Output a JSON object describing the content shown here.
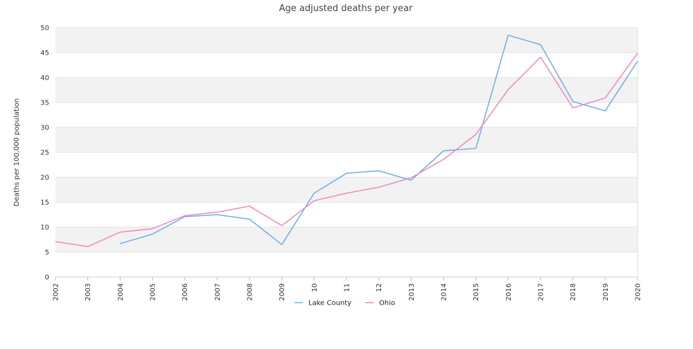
{
  "chart_data": {
    "type": "line",
    "title": "Age adjusted deaths per year",
    "xlabel": "",
    "ylabel": "Deaths per 100,000 population",
    "ylim": [
      0,
      50
    ],
    "y_ticks": [
      0,
      5,
      10,
      15,
      20,
      25,
      30,
      35,
      40,
      45,
      50
    ],
    "x_tick_labels": [
      "2002",
      "2003",
      "2004",
      "2005",
      "2006",
      "2007",
      "2008",
      "2009",
      "10",
      "11",
      "12",
      "2013",
      "2014",
      "2015",
      "2016",
      "2017",
      "2018",
      "2019",
      "2020"
    ],
    "x": [
      2002,
      2003,
      2004,
      2005,
      2006,
      2007,
      2008,
      2009,
      2010,
      2011,
      2012,
      2013,
      2014,
      2015,
      2016,
      2017,
      2018,
      2019,
      2020
    ],
    "grid": "alternating horizontal bands",
    "legend_position": "bottom",
    "series": [
      {
        "name": "Lake County",
        "color": "#6aaee8",
        "values": [
          null,
          null,
          6.7,
          8.6,
          12.1,
          12.5,
          11.6,
          6.5,
          16.8,
          20.8,
          21.3,
          19.4,
          25.3,
          25.8,
          48.5,
          46.6,
          35.2,
          33.3,
          43.3
        ]
      },
      {
        "name": "Ohio",
        "color": "#ee88bb",
        "values": [
          7.1,
          6.1,
          9.0,
          9.7,
          12.3,
          13.0,
          14.2,
          10.3,
          15.3,
          16.8,
          18.0,
          19.9,
          23.6,
          28.6,
          37.6,
          44.1,
          33.9,
          35.9,
          44.9
        ]
      }
    ]
  }
}
